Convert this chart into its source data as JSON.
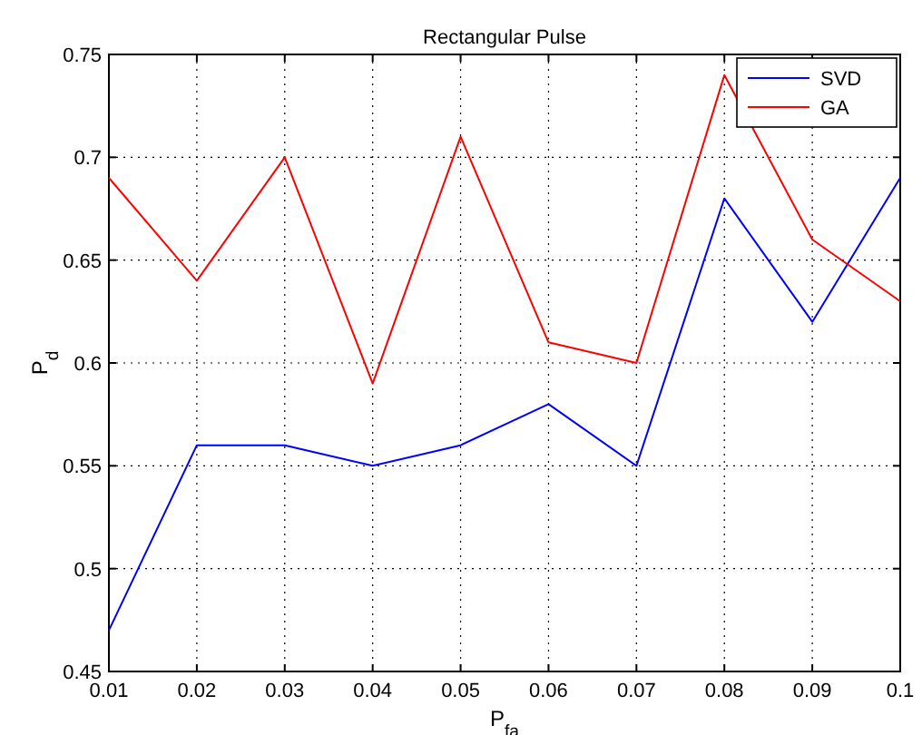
{
  "chart_data": {
    "type": "line",
    "title": "Rectangular Pulse",
    "xlabel": "P$_{fa}$",
    "ylabel": "P$_{d}$",
    "x": [
      0.01,
      0.02,
      0.03,
      0.04,
      0.05,
      0.06,
      0.07,
      0.08,
      0.09,
      0.1
    ],
    "series": [
      {
        "name": "SVD",
        "color": "#0000ff",
        "values": [
          0.47,
          0.56,
          0.56,
          0.55,
          0.56,
          0.58,
          0.55,
          0.68,
          0.62,
          0.69
        ]
      },
      {
        "name": "GA",
        "color": "#ff0000",
        "values": [
          0.69,
          0.64,
          0.7,
          0.59,
          0.71,
          0.61,
          0.6,
          0.74,
          0.66,
          0.63
        ]
      }
    ],
    "xlim": [
      0.01,
      0.1
    ],
    "xticks": [
      0.01,
      0.02,
      0.03,
      0.04,
      0.05,
      0.06,
      0.07,
      0.08,
      0.09,
      0.1
    ],
    "ylim": [
      0.45,
      0.75
    ],
    "yticks": [
      0.45,
      0.5,
      0.55,
      0.6,
      0.65,
      0.7,
      0.75
    ],
    "grid": true,
    "legend": "top right"
  }
}
